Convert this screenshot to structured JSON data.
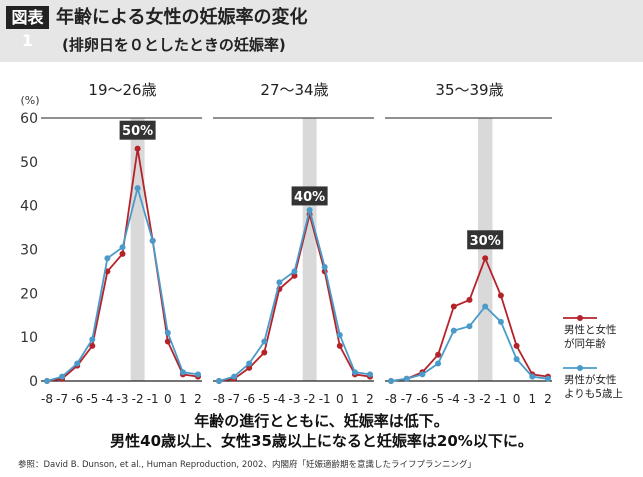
{
  "figure": {
    "tag": "図表1",
    "title": "年齢による女性の妊娠率の変化",
    "subtitle": "(排卵日を０としたときの妊娠率)",
    "summary_line1": "年齢の進行とともに、妊娠率は低下。",
    "summary_line2": "男性40歳以上、女性35歳以上になると妊娠率は20%以下に。",
    "source": "参照：David B. Dunson, et al., Human Reproduction, 2002、内閣府「妊娠適齢期を意識したライフプランニング」"
  },
  "chart_data": {
    "type": "line",
    "y_unit": "(%)",
    "ylim": [
      0,
      60
    ],
    "y_ticks": [
      "0",
      "10",
      "20",
      "30",
      "40",
      "50",
      "60"
    ],
    "x": [
      -8,
      -7,
      -6,
      -5,
      -4,
      -3,
      -2,
      -1,
      0,
      1,
      2
    ],
    "x_tick_labels": [
      "-8",
      "-7",
      "-6",
      "-5",
      "-4",
      "-3",
      "-2",
      "-1",
      "0",
      "1",
      "2"
    ],
    "highlight_x": -2,
    "grid": false,
    "legend_position": "right",
    "legend": [
      {
        "name": "男性と女性\nが同年齢",
        "color": "#b5232a"
      },
      {
        "name": "男性が女性\nよりも5歳上",
        "color": "#4a9bc9"
      }
    ],
    "colors": {
      "same_age": "#b5232a",
      "older": "#4a9bc9",
      "highlight": "#d9d9d9",
      "label_bg": "#333333"
    },
    "panels": [
      {
        "title": "19〜26歳",
        "peak_label": "50%",
        "series": [
          {
            "values": [
              0,
              0.5,
              3.5,
              8,
              25,
              29,
              53,
              32,
              9,
              1.5,
              1
            ]
          },
          {
            "values": [
              0,
              1,
              4,
              9.5,
              28,
              30.5,
              44,
              32,
              11,
              2,
              1.5
            ]
          }
        ]
      },
      {
        "title": "27〜34歳",
        "peak_label": "40%",
        "series": [
          {
            "values": [
              0,
              0.5,
              3,
              6.5,
              21,
              24,
              38,
              25,
              8,
              1.5,
              1
            ]
          },
          {
            "values": [
              0,
              1,
              4,
              9,
              22.5,
              25,
              39,
              26,
              10.5,
              2,
              1.5
            ]
          }
        ]
      },
      {
        "title": "35〜39歳",
        "peak_label": "30%",
        "series": [
          {
            "values": [
              0,
              0.5,
              2,
              6,
              17,
              18.5,
              28,
              19.5,
              8,
              1.5,
              1
            ]
          },
          {
            "values": [
              0,
              0.5,
              1.5,
              4,
              11.5,
              12.5,
              17,
              13.5,
              5,
              1,
              0.5
            ]
          }
        ]
      }
    ]
  }
}
